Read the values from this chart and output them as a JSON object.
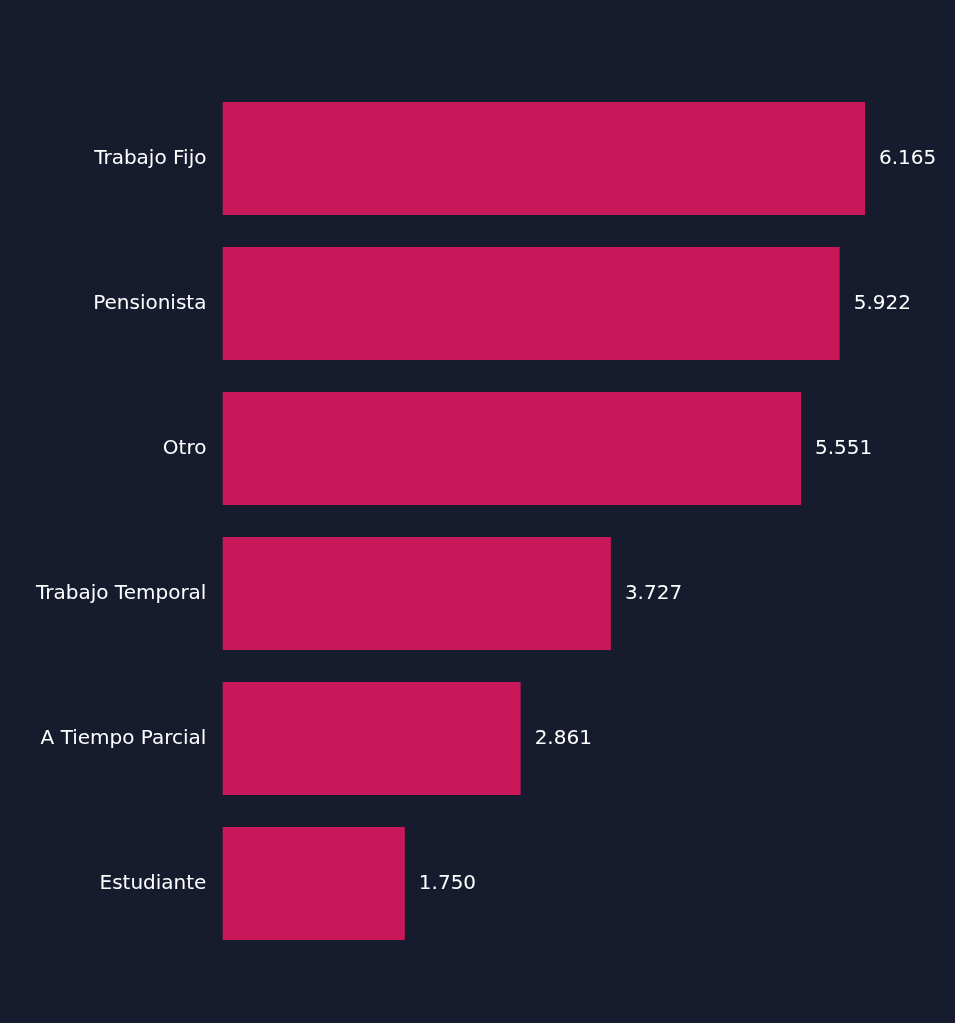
{
  "chart_data": {
    "type": "bar",
    "orientation": "horizontal",
    "categories": [
      "Trabajo Fijo",
      "Pensionista",
      "Otro",
      "Trabajo Temporal",
      "A Tiempo Parcial",
      "Estudiante"
    ],
    "values": [
      6165,
      5922,
      5551,
      3727,
      2861,
      1750
    ],
    "color": "#c8185a",
    "value_labels": [
      "6.165",
      "5.922",
      "5.551",
      "3.727",
      "2.861",
      "1.750"
    ],
    "legend": false,
    "tick_labels": "y"
  }
}
